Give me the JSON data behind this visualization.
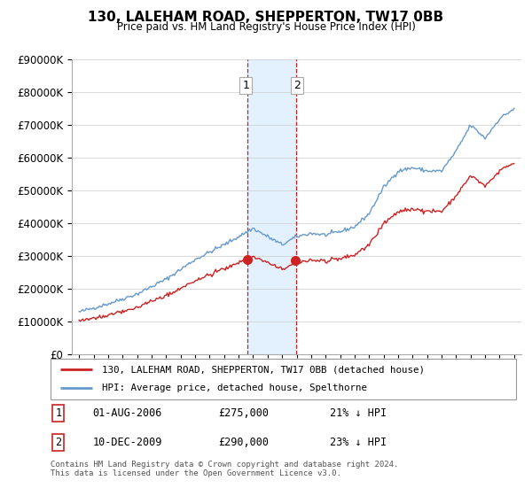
{
  "title": "130, LALEHAM ROAD, SHEPPERTON, TW17 0BB",
  "subtitle": "Price paid vs. HM Land Registry's House Price Index (HPI)",
  "legend_line1": "130, LALEHAM ROAD, SHEPPERTON, TW17 0BB (detached house)",
  "legend_line2": "HPI: Average price, detached house, Spelthorne",
  "sale1_date": "01-AUG-2006",
  "sale1_price": 275000,
  "sale1_pct": "21% ↓ HPI",
  "sale2_date": "10-DEC-2009",
  "sale2_price": 290000,
  "sale2_pct": "23% ↓ HPI",
  "footnote": "Contains HM Land Registry data © Crown copyright and database right 2024.\nThis data is licensed under the Open Government Licence v3.0.",
  "hpi_color": "#6699cc",
  "price_color": "#cc2222",
  "shading_color": "#ddeeff",
  "ylim_max": 900000,
  "sale1_x": 2006.58,
  "sale2_x": 2009.94,
  "xmin": 1994.5,
  "xmax": 2025.5
}
